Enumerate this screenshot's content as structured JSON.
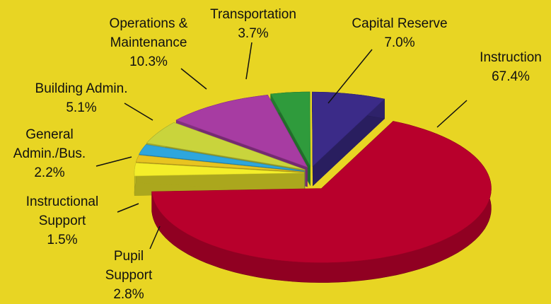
{
  "chart_data": {
    "type": "pie",
    "categories": [
      "Instruction",
      "Pupil\nSupport",
      "Instructional\nSupport",
      "General\nAdmin./Bus.",
      "Building Admin.",
      "Operations &\nMaintenance",
      "Transportation",
      "Capital Reserve"
    ],
    "values": [
      67.4,
      2.8,
      1.5,
      2.2,
      5.1,
      10.3,
      3.7,
      7.0
    ],
    "value_labels": [
      "67.4%",
      "2.8%",
      "1.5%",
      "2.2%",
      "5.1%",
      "10.3%",
      "3.7%",
      "7.0%"
    ],
    "colors": [
      "#b8002c",
      "#f4ee2a",
      "#e8c420",
      "#2ea6dc",
      "#c9d43c",
      "#a73ca2",
      "#2f9b3c",
      "#3b2b88"
    ]
  }
}
